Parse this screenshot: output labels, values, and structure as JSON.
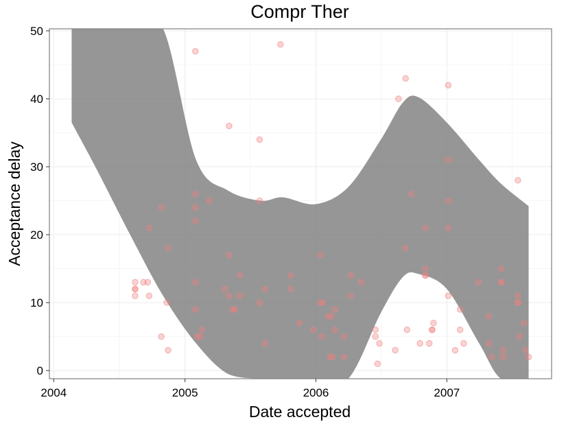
{
  "chart_data": {
    "type": "scatter",
    "title": "Compr Ther",
    "xlabel": "Date accepted",
    "ylabel": "Acceptance delay",
    "x_axis": {
      "type": "date",
      "range": [
        "2003-12-20",
        "2007-10-20"
      ],
      "ticks": [
        "2004",
        "2005",
        "2006",
        "2007"
      ]
    },
    "y_axis": {
      "range": [
        -1.2,
        50.3
      ],
      "ticks": [
        0,
        10,
        20,
        30,
        40,
        50
      ]
    },
    "grid": true,
    "legend": "none",
    "colors": {
      "points": "#f08080",
      "band": "#7f7f7f",
      "grid": "#ebebeb",
      "border": "#7f7f7f"
    },
    "series": [
      {
        "points": [
          [
            "2004-08-15",
            13
          ],
          [
            "2004-08-15",
            12
          ],
          [
            "2004-08-15",
            12
          ],
          [
            "2004-08-15",
            11
          ],
          [
            "2004-09-07",
            13
          ],
          [
            "2004-09-19",
            13
          ],
          [
            "2004-09-23",
            11
          ],
          [
            "2004-09-23",
            21
          ],
          [
            "2004-10-27",
            24
          ],
          [
            "2004-10-27",
            5
          ],
          [
            "2004-11-11",
            10
          ],
          [
            "2004-11-15",
            18
          ],
          [
            "2004-11-15",
            3
          ],
          [
            "2005-01-30",
            47
          ],
          [
            "2005-01-30",
            26
          ],
          [
            "2005-01-30",
            24
          ],
          [
            "2005-01-30",
            22
          ],
          [
            "2005-01-30",
            13
          ],
          [
            "2005-01-30",
            9
          ],
          [
            "2005-02-04",
            5
          ],
          [
            "2005-02-13",
            5
          ],
          [
            "2005-02-18",
            6
          ],
          [
            "2005-03-09",
            25
          ],
          [
            "2005-04-22",
            12
          ],
          [
            "2005-05-04",
            36
          ],
          [
            "2005-05-04",
            17
          ],
          [
            "2005-05-04",
            11
          ],
          [
            "2005-05-14",
            9
          ],
          [
            "2005-05-20",
            9
          ],
          [
            "2005-06-03",
            14
          ],
          [
            "2005-06-03",
            11
          ],
          [
            "2005-07-28",
            34
          ],
          [
            "2005-07-28",
            25
          ],
          [
            "2005-07-28",
            10
          ],
          [
            "2005-08-12",
            12
          ],
          [
            "2005-08-12",
            4
          ],
          [
            "2005-09-24",
            48
          ],
          [
            "2005-10-23",
            14
          ],
          [
            "2005-10-23",
            12
          ],
          [
            "2005-11-16",
            7
          ],
          [
            "2005-12-25",
            6
          ],
          [
            "2006-01-13",
            17
          ],
          [
            "2006-01-13",
            10
          ],
          [
            "2006-01-17",
            5
          ],
          [
            "2006-01-20",
            10
          ],
          [
            "2006-02-04",
            8
          ],
          [
            "2006-02-09",
            2
          ],
          [
            "2006-02-13",
            8
          ],
          [
            "2006-02-17",
            2
          ],
          [
            "2006-02-23",
            9
          ],
          [
            "2006-02-23",
            6
          ],
          [
            "2006-03-20",
            5
          ],
          [
            "2006-03-20",
            2
          ],
          [
            "2006-04-08",
            14
          ],
          [
            "2006-04-08",
            11
          ],
          [
            "2006-05-07",
            13
          ],
          [
            "2006-06-16",
            6
          ],
          [
            "2006-06-16",
            5
          ],
          [
            "2006-06-22",
            1
          ],
          [
            "2006-06-27",
            4
          ],
          [
            "2006-08-10",
            3
          ],
          [
            "2006-08-19",
            40
          ],
          [
            "2006-09-08",
            43
          ],
          [
            "2006-09-08",
            18
          ],
          [
            "2006-09-12",
            6
          ],
          [
            "2006-09-24",
            26
          ],
          [
            "2006-10-18",
            4
          ],
          [
            "2006-11-02",
            21
          ],
          [
            "2006-11-02",
            15
          ],
          [
            "2006-11-02",
            14
          ],
          [
            "2006-11-02",
            14
          ],
          [
            "2006-11-13",
            4
          ],
          [
            "2006-11-21",
            6
          ],
          [
            "2006-11-21",
            6
          ],
          [
            "2006-11-25",
            7
          ],
          [
            "2007-01-05",
            42
          ],
          [
            "2007-01-05",
            31
          ],
          [
            "2007-01-05",
            25
          ],
          [
            "2007-01-05",
            21
          ],
          [
            "2007-01-05",
            11
          ],
          [
            "2007-01-24",
            3
          ],
          [
            "2007-02-07",
            9
          ],
          [
            "2007-02-07",
            6
          ],
          [
            "2007-02-17",
            4
          ],
          [
            "2007-03-30",
            13
          ],
          [
            "2007-04-28",
            8
          ],
          [
            "2007-04-28",
            4
          ],
          [
            "2007-05-06",
            2
          ],
          [
            "2007-06-02",
            15
          ],
          [
            "2007-06-02",
            13
          ],
          [
            "2007-06-02",
            13
          ],
          [
            "2007-06-07",
            3
          ],
          [
            "2007-06-07",
            2
          ],
          [
            "2007-07-18",
            28
          ],
          [
            "2007-07-18",
            11
          ],
          [
            "2007-07-18",
            10
          ],
          [
            "2007-07-18",
            10
          ],
          [
            "2007-07-22",
            5
          ],
          [
            "2007-08-04",
            7
          ],
          [
            "2007-08-08",
            3
          ],
          [
            "2007-08-17",
            2
          ]
        ]
      }
    ],
    "smooth_band": {
      "x": [
        "2004-02-20",
        "2004-05-01",
        "2004-08-01",
        "2004-11-01",
        "2005-02-01",
        "2005-05-01",
        "2005-08-01",
        "2005-10-01",
        "2006-01-01",
        "2006-04-01",
        "2006-07-01",
        "2006-09-01",
        "2006-10-15",
        "2007-01-01",
        "2007-04-01",
        "2007-06-01",
        "2007-08-17"
      ],
      "lower": [
        36.5,
        29.5,
        20.0,
        11.0,
        4.0,
        -0.5,
        -1.3,
        -1.3,
        -1.3,
        -1.3,
        8.5,
        13.8,
        14.2,
        12.0,
        4.0,
        -1.3,
        -1.3
      ],
      "upper": [
        50.3,
        50.3,
        50.3,
        50.3,
        50.3,
        50.3,
        50.3,
        50.3,
        50.3,
        50.3,
        50.3,
        50.3,
        50.3,
        50.3,
        50.3,
        50.3,
        50.3
      ],
      "lower_edge": [
        36.5,
        29.5,
        20.0,
        11.0,
        4.0,
        -0.5,
        -1.3,
        -1.3,
        -1.3,
        -1.3,
        8.5,
        13.8,
        14.2,
        12.0,
        4.0,
        -1.3,
        -1.3
      ],
      "upper_edge": [
        50.3,
        50.3,
        50.3,
        50.3,
        31.0,
        26.5,
        25.0,
        25.5,
        24.5,
        27.0,
        34.0,
        39.5,
        40.2,
        36.5,
        31.0,
        27.5,
        24.2
      ]
    }
  }
}
